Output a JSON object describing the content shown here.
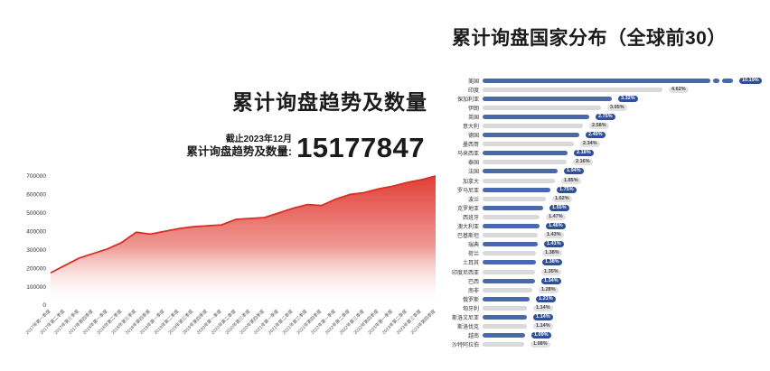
{
  "left_chart": {
    "title": "累计询盘趋势及数量",
    "as_of_label": "截止2023年12月",
    "total_label": "累计询盘趋势及数量:",
    "total_value": "15177847"
  },
  "right_chart": {
    "title": "累计询盘国家分布（全球前30）"
  },
  "colors": {
    "area_stroke": "#d92f23",
    "area_fill_top": "#e0342b",
    "bar_blue": "#4a69ad",
    "bar_gray": "#d9d9d9",
    "badge_blue": "#2f4f96",
    "badge_blue_text": "#ffffff",
    "badge_gray": "#e2e2e2",
    "badge_gray_text": "#444444",
    "axis_text": "#555555"
  },
  "chart_data": [
    {
      "type": "area",
      "title": "累计询盘趋势及数量",
      "x": [
        "2017年第一季度",
        "2017年第二季度",
        "2017年第三季度",
        "2017年第四季度",
        "2018年第一季度",
        "2018年第二季度",
        "2018年第三季度",
        "2018年第四季度",
        "2019年第一季度",
        "2019年第二季度",
        "2019年第三季度",
        "2019年第四季度",
        "2020年第一季度",
        "2020年第二季度",
        "2020年第三季度",
        "2020年第四季度",
        "2021年第一季度",
        "2021年第二季度",
        "2021年第三季度",
        "2021年第四季度",
        "2022年第一季度",
        "2022年第二季度",
        "2022年第三季度",
        "2022年第四季度",
        "2023年第一季度",
        "2023年第二季度",
        "2023年第三季度",
        "2023年第四季度"
      ],
      "values": [
        175000,
        215000,
        255000,
        280000,
        305000,
        340000,
        395000,
        385000,
        400000,
        415000,
        425000,
        430000,
        435000,
        465000,
        470000,
        475000,
        500000,
        525000,
        545000,
        540000,
        575000,
        600000,
        610000,
        630000,
        645000,
        665000,
        680000,
        700000
      ],
      "ylim": [
        0,
        700000
      ],
      "yticks": [
        0,
        100000,
        200000,
        300000,
        400000,
        500000,
        600000,
        700000
      ],
      "grid": false,
      "legend": "none"
    },
    {
      "type": "bar",
      "orientation": "horizontal",
      "title": "累计询盘国家分布（全球前30）",
      "categories": [
        "美国",
        "印度",
        "保加利亚",
        "伊朗",
        "英国",
        "意大利",
        "德国",
        "墨西哥",
        "马来西亚",
        "泰国",
        "法国",
        "加拿大",
        "罗马尼亚",
        "波兰",
        "克罗地亚",
        "西班牙",
        "澳大利亚",
        "巴基斯坦",
        "瑞典",
        "荷兰",
        "土耳其",
        "印度尼西亚",
        "巴西",
        "南非",
        "俄罗斯",
        "匈牙利",
        "斯洛文尼亚",
        "斯洛伐克",
        "越南",
        "沙特阿拉伯"
      ],
      "values": [
        10.19,
        4.62,
        3.32,
        3.05,
        2.75,
        2.58,
        2.49,
        2.34,
        2.18,
        2.16,
        1.94,
        1.85,
        1.75,
        1.62,
        1.55,
        1.47,
        1.46,
        1.43,
        1.41,
        1.38,
        1.38,
        1.35,
        1.34,
        1.28,
        1.21,
        1.14,
        1.14,
        1.14,
        1.09,
        1.08
      ],
      "value_labels": [
        "10.19%",
        "4.62%",
        "3.32%",
        "3.05%",
        "2.75%",
        "2.58%",
        "2.49%",
        "2.34%",
        "2.18%",
        "2.16%",
        "1.94%",
        "1.85%",
        "1.75%",
        "1.62%",
        "1.55%",
        "1.47%",
        "1.46%",
        "1.43%",
        "1.41%",
        "1.38%",
        "1.38%",
        "1.35%",
        "1.34%",
        "1.28%",
        "1.21%",
        "1.14%",
        "1.14%",
        "1.14%",
        "1.09%",
        "1.08%"
      ],
      "layout": {
        "first_bar_axis_break": true,
        "alternating_colors": [
          "blue",
          "gray"
        ],
        "legend": "none"
      }
    }
  ]
}
